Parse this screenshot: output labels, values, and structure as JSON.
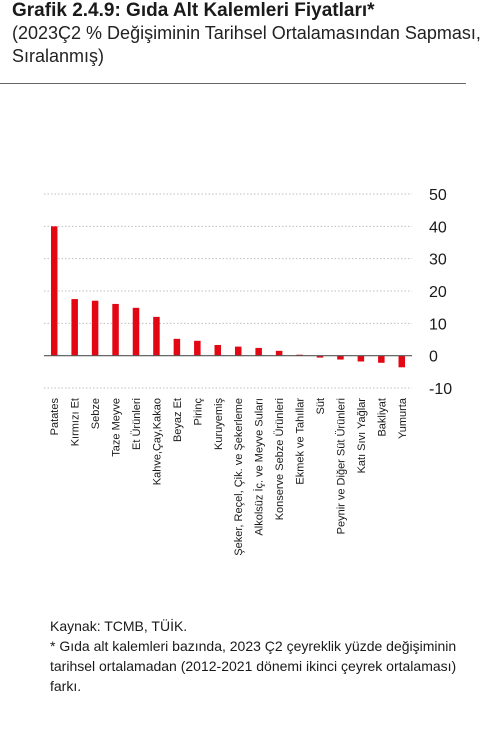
{
  "header": {
    "title": "Grafik 2.4.9: Gıda Alt Kalemleri Fiyatları*",
    "subtitle": "(2023Ç2 % Değişiminin Tarihsel Ortalamasından Sapması, Sıralanmış)"
  },
  "chart_data": {
    "type": "bar",
    "categories": [
      "Patates",
      "Kırmızı Et",
      "Sebze",
      "Taze Meyve",
      "Et Ürünleri",
      "Kahve,Çay,Kakao",
      "Beyaz Et",
      "Pirinç",
      "Kuruyemiş",
      "Şeker, Reçel, Çik. ve Şekerleme",
      "Alkolsüz İç. ve Meyve Suları",
      "Konserve Sebze Ürünleri",
      "Ekmek ve Tahıllar",
      "Süt",
      "Peynir ve Diğer Süt Ürünleri",
      "Katı Sıvı Yağlar",
      "Bakliyat",
      "Yumurta"
    ],
    "values": [
      40,
      17.5,
      17,
      16,
      14.8,
      12,
      5.2,
      4.6,
      3.3,
      2.8,
      2.4,
      1.5,
      0.3,
      -0.6,
      -1.2,
      -1.8,
      -2.2,
      -3.6
    ],
    "ylim": [
      -10,
      50
    ],
    "yticks": [
      50,
      40,
      30,
      20,
      10,
      0,
      -10
    ],
    "y_axis_position": "right",
    "grid": true,
    "bar_color": "#e30613"
  },
  "footer": {
    "source": "Kaynak: TCMB, TÜİK.",
    "note": "* Gıda alt kalemleri bazında, 2023 Ç2 çeyreklik yüzde değişiminin tarihsel ortalamadan (2012-2021 dönemi ikinci çeyrek ortalaması) farkı."
  }
}
